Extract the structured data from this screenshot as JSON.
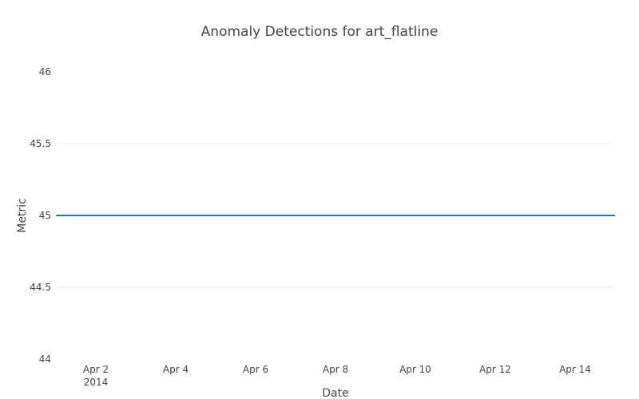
{
  "chart_data": {
    "type": "line",
    "title": "Anomaly Detections for art_flatline",
    "xlabel": "Date",
    "ylabel": "Metric",
    "x_ticks": [
      {
        "date": "2014-04-02",
        "label": "Apr 2",
        "sublabel": "2014"
      },
      {
        "date": "2014-04-04",
        "label": "Apr 4"
      },
      {
        "date": "2014-04-06",
        "label": "Apr 6"
      },
      {
        "date": "2014-04-08",
        "label": "Apr 8"
      },
      {
        "date": "2014-04-10",
        "label": "Apr 10"
      },
      {
        "date": "2014-04-12",
        "label": "Apr 12"
      },
      {
        "date": "2014-04-14",
        "label": "Apr 14"
      }
    ],
    "y_ticks": [
      {
        "value": 44,
        "label": "44"
      },
      {
        "value": 44.5,
        "label": "44.5"
      },
      {
        "value": 45,
        "label": "45"
      },
      {
        "value": 45.5,
        "label": "45.5"
      },
      {
        "value": 46,
        "label": "46"
      }
    ],
    "xlim": [
      "2014-04-01",
      "2014-04-15"
    ],
    "ylim": [
      44,
      46
    ],
    "grid": true,
    "series": [
      {
        "color": "#1f77b4",
        "x": [
          "2014-04-01",
          "2014-04-15"
        ],
        "y": [
          45,
          45
        ]
      }
    ]
  }
}
